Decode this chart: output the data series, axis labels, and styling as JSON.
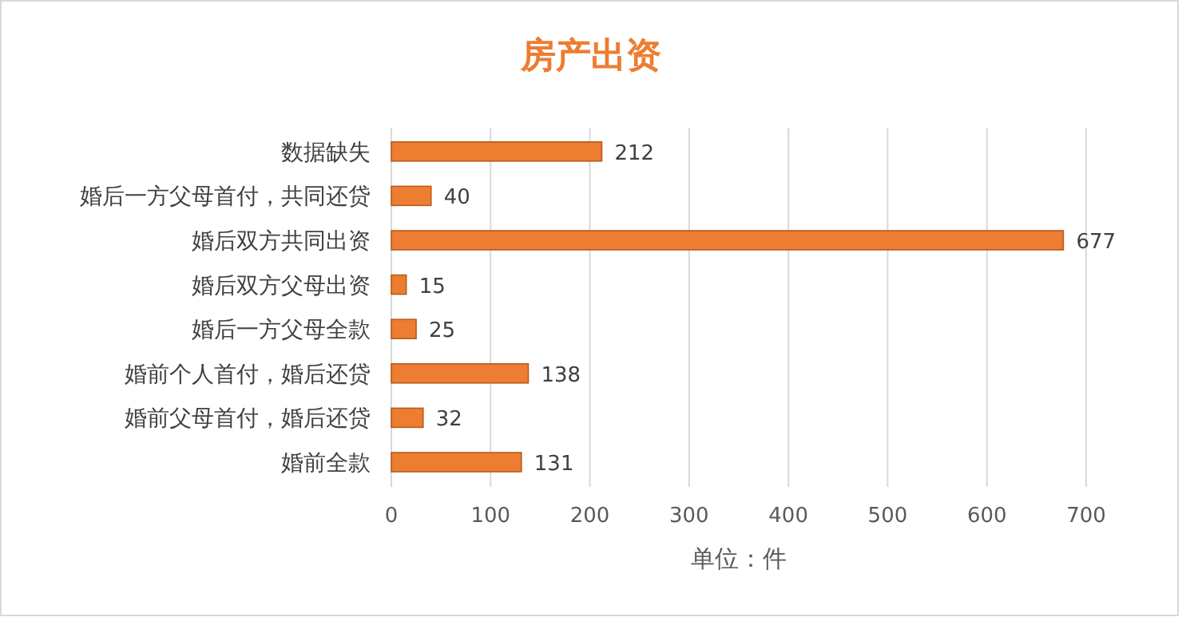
{
  "chart_data": {
    "type": "bar",
    "orientation": "horizontal",
    "title": "房产出资",
    "xlabel": "单位：件",
    "categories": [
      "数据缺失",
      "婚后一方父母首付，共同还贷",
      "婚后双方共同出资",
      "婚后双方父母出资",
      "婚后一方父母全款",
      "婚前个人首付，婚后还贷",
      "婚前父母首付，婚后还贷",
      "婚前全款"
    ],
    "values": [
      212,
      40,
      677,
      15,
      25,
      138,
      32,
      131
    ],
    "color": "#ed7d31",
    "xlim": [
      0,
      700
    ],
    "xticks": [
      0,
      100,
      200,
      300,
      400,
      500,
      600,
      700
    ],
    "grid": "x",
    "data_labels": true
  }
}
